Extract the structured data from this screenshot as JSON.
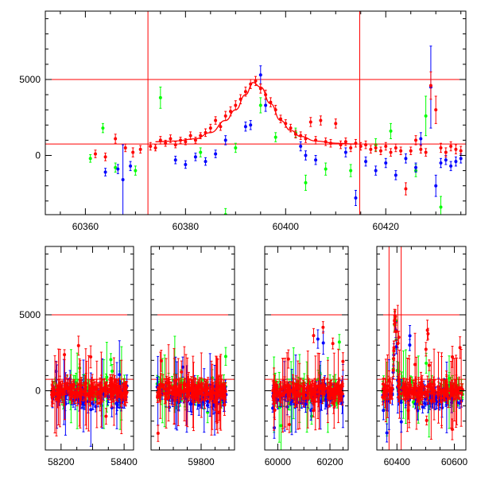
{
  "chart_data": [
    {
      "type": "scatter",
      "title": "",
      "xlabel": "",
      "ylabel": "",
      "xlim": [
        60352,
        60436
      ],
      "ylim": [
        -3900,
        9500
      ],
      "x_ticks": [
        60360,
        60380,
        60400,
        60420
      ],
      "x_tick_labels": [
        "60360",
        "60380",
        "60400",
        "60420"
      ],
      "y_ticks": [
        0,
        5000
      ],
      "y_tick_labels": [
        "0",
        "5000"
      ],
      "reference_lines": {
        "horizontal": [
          5000,
          750
        ],
        "vertical": [
          60372.5,
          60414.8
        ],
        "color": "#ff0000"
      },
      "fit_curve": {
        "label": "",
        "color": "#ff0000",
        "x": [
          60374,
          60378,
          60382,
          60385,
          60388,
          60390,
          60392,
          60393.5,
          60395,
          60397,
          60399,
          60401,
          60403,
          60406,
          60410,
          60414
        ],
        "y": [
          900,
          950,
          1100,
          1500,
          2300,
          3000,
          4000,
          4800,
          4500,
          3400,
          2300,
          1650,
          1250,
          950,
          800,
          750
        ]
      },
      "series": [
        {
          "color": "#ff0000",
          "points": [
            {
              "x": 60362,
              "y": 100,
              "err": 250
            },
            {
              "x": 60364,
              "y": -100,
              "err": 250
            },
            {
              "x": 60366,
              "y": 1100,
              "err": 300
            },
            {
              "x": 60368,
              "y": 500,
              "err": 250
            },
            {
              "x": 60369.5,
              "y": 200,
              "err": 300
            },
            {
              "x": 60371,
              "y": 400,
              "err": 250
            },
            {
              "x": 60373,
              "y": 600,
              "err": 250
            },
            {
              "x": 60374,
              "y": 500,
              "err": 200
            },
            {
              "x": 60375,
              "y": 1000,
              "err": 250
            },
            {
              "x": 60376,
              "y": 800,
              "err": 200
            },
            {
              "x": 60377,
              "y": 1100,
              "err": 250
            },
            {
              "x": 60378,
              "y": 700,
              "err": 200
            },
            {
              "x": 60379,
              "y": 1000,
              "err": 200
            },
            {
              "x": 60380,
              "y": 900,
              "err": 200
            },
            {
              "x": 60381,
              "y": 1300,
              "err": 250
            },
            {
              "x": 60382,
              "y": 1000,
              "err": 200
            },
            {
              "x": 60383,
              "y": 1300,
              "err": 200
            },
            {
              "x": 60384,
              "y": 1500,
              "err": 250
            },
            {
              "x": 60385,
              "y": 1800,
              "err": 250
            },
            {
              "x": 60386,
              "y": 2300,
              "err": 250
            },
            {
              "x": 60387,
              "y": 1900,
              "err": 250
            },
            {
              "x": 60388,
              "y": 2600,
              "err": 300
            },
            {
              "x": 60389,
              "y": 2900,
              "err": 300
            },
            {
              "x": 60390,
              "y": 3300,
              "err": 300
            },
            {
              "x": 60391,
              "y": 3700,
              "err": 300
            },
            {
              "x": 60392,
              "y": 4200,
              "err": 300
            },
            {
              "x": 60393,
              "y": 4700,
              "err": 300
            },
            {
              "x": 60394,
              "y": 4900,
              "err": 300
            },
            {
              "x": 60395,
              "y": 4400,
              "err": 300
            },
            {
              "x": 60396,
              "y": 4000,
              "err": 300
            },
            {
              "x": 60397,
              "y": 3500,
              "err": 300
            },
            {
              "x": 60398,
              "y": 3000,
              "err": 300
            },
            {
              "x": 60399,
              "y": 2400,
              "err": 250
            },
            {
              "x": 60400,
              "y": 2100,
              "err": 250
            },
            {
              "x": 60401,
              "y": 1800,
              "err": 250
            },
            {
              "x": 60402,
              "y": 1400,
              "err": 250
            },
            {
              "x": 60403,
              "y": 1300,
              "err": 250
            },
            {
              "x": 60404,
              "y": 1100,
              "err": 250
            },
            {
              "x": 60405,
              "y": 2200,
              "err": 300
            },
            {
              "x": 60406,
              "y": 1000,
              "err": 250
            },
            {
              "x": 60407,
              "y": 2300,
              "err": 300
            },
            {
              "x": 60408,
              "y": 900,
              "err": 250
            },
            {
              "x": 60409,
              "y": 800,
              "err": 250
            },
            {
              "x": 60410,
              "y": 2100,
              "err": 300
            },
            {
              "x": 60411,
              "y": 700,
              "err": 250
            },
            {
              "x": 60412,
              "y": 900,
              "err": 250
            },
            {
              "x": 60413,
              "y": 500,
              "err": 250
            },
            {
              "x": 60414,
              "y": 800,
              "err": 250
            },
            {
              "x": 60415,
              "y": 600,
              "err": 250
            },
            {
              "x": 60416,
              "y": 700,
              "err": 250
            },
            {
              "x": 60417,
              "y": 400,
              "err": 250
            },
            {
              "x": 60418,
              "y": 500,
              "err": 250
            },
            {
              "x": 60419,
              "y": 300,
              "err": 250
            },
            {
              "x": 60420,
              "y": 600,
              "err": 250
            },
            {
              "x": 60421,
              "y": 200,
              "err": 250
            },
            {
              "x": 60422,
              "y": 500,
              "err": 250
            },
            {
              "x": 60423,
              "y": 300,
              "err": 250
            },
            {
              "x": 60424,
              "y": -2200,
              "err": 400
            },
            {
              "x": 60425,
              "y": 300,
              "err": 250
            },
            {
              "x": 60426,
              "y": 1000,
              "err": 300
            },
            {
              "x": 60427,
              "y": 400,
              "err": 250
            },
            {
              "x": 60428,
              "y": 200,
              "err": 250
            },
            {
              "x": 60429,
              "y": 4600,
              "err": 900
            },
            {
              "x": 60430,
              "y": 3000,
              "err": 900
            },
            {
              "x": 60431,
              "y": 500,
              "err": 300
            },
            {
              "x": 60432,
              "y": 200,
              "err": 300
            },
            {
              "x": 60433,
              "y": 600,
              "err": 300
            },
            {
              "x": 60434,
              "y": 400,
              "err": 300
            },
            {
              "x": 60435,
              "y": 300,
              "err": 300
            }
          ]
        },
        {
          "color": "#0000ff",
          "points": [
            {
              "x": 60364,
              "y": -1100,
              "err": 250
            },
            {
              "x": 60366.5,
              "y": -900,
              "err": 300
            },
            {
              "x": 60367.5,
              "y": -1600,
              "err": 2300
            },
            {
              "x": 60369,
              "y": -700,
              "err": 300
            },
            {
              "x": 60378,
              "y": -300,
              "err": 250
            },
            {
              "x": 60380,
              "y": -600,
              "err": 250
            },
            {
              "x": 60382,
              "y": -100,
              "err": 250
            },
            {
              "x": 60384,
              "y": -400,
              "err": 250
            },
            {
              "x": 60386,
              "y": 100,
              "err": 250
            },
            {
              "x": 60388,
              "y": 1000,
              "err": 300
            },
            {
              "x": 60392,
              "y": 1900,
              "err": 300
            },
            {
              "x": 60393,
              "y": 2000,
              "err": 300
            },
            {
              "x": 60395,
              "y": 5300,
              "err": 600
            },
            {
              "x": 60396,
              "y": 3300,
              "err": 400
            },
            {
              "x": 60403,
              "y": 600,
              "err": 300
            },
            {
              "x": 60404,
              "y": 0,
              "err": 300
            },
            {
              "x": 60406,
              "y": -300,
              "err": 300
            },
            {
              "x": 60412,
              "y": 200,
              "err": 300
            },
            {
              "x": 60414,
              "y": -2800,
              "err": 500
            },
            {
              "x": 60416,
              "y": -400,
              "err": 300
            },
            {
              "x": 60418,
              "y": -1000,
              "err": 300
            },
            {
              "x": 60420,
              "y": -500,
              "err": 300
            },
            {
              "x": 60422,
              "y": -1300,
              "err": 300
            },
            {
              "x": 60424,
              "y": -200,
              "err": 300
            },
            {
              "x": 60426,
              "y": -800,
              "err": 300
            },
            {
              "x": 60427,
              "y": 1100,
              "err": 400
            },
            {
              "x": 60429,
              "y": 4500,
              "err": 2700
            },
            {
              "x": 60430,
              "y": -2000,
              "err": 700
            },
            {
              "x": 60431,
              "y": -500,
              "err": 300
            },
            {
              "x": 60432,
              "y": -300,
              "err": 300
            },
            {
              "x": 60433,
              "y": -700,
              "err": 300
            },
            {
              "x": 60434,
              "y": -400,
              "err": 300
            },
            {
              "x": 60435,
              "y": -200,
              "err": 300
            }
          ]
        },
        {
          "color": "#00ff00",
          "points": [
            {
              "x": 60361,
              "y": -200,
              "err": 250
            },
            {
              "x": 60363.5,
              "y": 1800,
              "err": 300
            },
            {
              "x": 60366,
              "y": -800,
              "err": 300
            },
            {
              "x": 60370,
              "y": -1000,
              "err": 300
            },
            {
              "x": 60375,
              "y": 3800,
              "err": 700
            },
            {
              "x": 60383,
              "y": 200,
              "err": 300
            },
            {
              "x": 60388,
              "y": -3900,
              "err": 400
            },
            {
              "x": 60390,
              "y": 500,
              "err": 300
            },
            {
              "x": 60395,
              "y": 3300,
              "err": 500
            },
            {
              "x": 60398,
              "y": 1200,
              "err": 300
            },
            {
              "x": 60402,
              "y": 1500,
              "err": 300
            },
            {
              "x": 60404,
              "y": -1800,
              "err": 500
            },
            {
              "x": 60408,
              "y": -900,
              "err": 400
            },
            {
              "x": 60413,
              "y": -1000,
              "err": 400
            },
            {
              "x": 60418,
              "y": 700,
              "err": 400
            },
            {
              "x": 60421,
              "y": 1600,
              "err": 500
            },
            {
              "x": 60426,
              "y": -1000,
              "err": 400
            },
            {
              "x": 60428,
              "y": 2600,
              "err": 1300
            },
            {
              "x": 60431,
              "y": -3400,
              "err": 700
            }
          ]
        }
      ]
    },
    {
      "type": "scatter",
      "title": "",
      "xlabel": "",
      "ylabel": "",
      "ylim": [
        -3900,
        9500
      ],
      "y_ticks": [
        0,
        5000
      ],
      "y_tick_labels": [
        "0",
        "5000"
      ],
      "reference_lines": {
        "horizontal": [
          5000,
          750
        ],
        "color": "#ff0000"
      },
      "panels": [
        {
          "xlim": [
            58150,
            58430
          ],
          "x_ticks": [
            58200,
            58300,
            58400
          ],
          "x_tick_labels": [
            "58200",
            "",
            "58400"
          ]
        },
        {
          "xlim": [
            59620,
            59920
          ],
          "x_ticks": [
            59800
          ],
          "x_tick_labels": [
            "59800"
          ]
        },
        {
          "xlim": [
            59950,
            60270
          ],
          "x_ticks": [
            60000,
            60200
          ],
          "x_tick_labels": [
            "60000",
            "60200"
          ]
        },
        {
          "xlim": [
            60330,
            60640
          ],
          "x_ticks": [
            60400,
            60600
          ],
          "x_tick_labels": [
            "60400",
            "60600"
          ],
          "vertical_lines": [
            60372.5,
            60414.8
          ]
        }
      ],
      "observing_windows": [
        {
          "panel": 0,
          "x_range": [
            58170,
            58410
          ]
        },
        {
          "panel": 1,
          "x_range": [
            59640,
            59890
          ]
        },
        {
          "panel": 2,
          "x_range": [
            59980,
            60250
          ]
        },
        {
          "panel": 3,
          "x_range": [
            60350,
            60630
          ]
        }
      ],
      "flare": {
        "panel": 3,
        "x_peak": 60394,
        "y_peak": 4900
      },
      "series_colors": [
        "#ff0000",
        "#0000ff",
        "#00ff00"
      ]
    }
  ]
}
